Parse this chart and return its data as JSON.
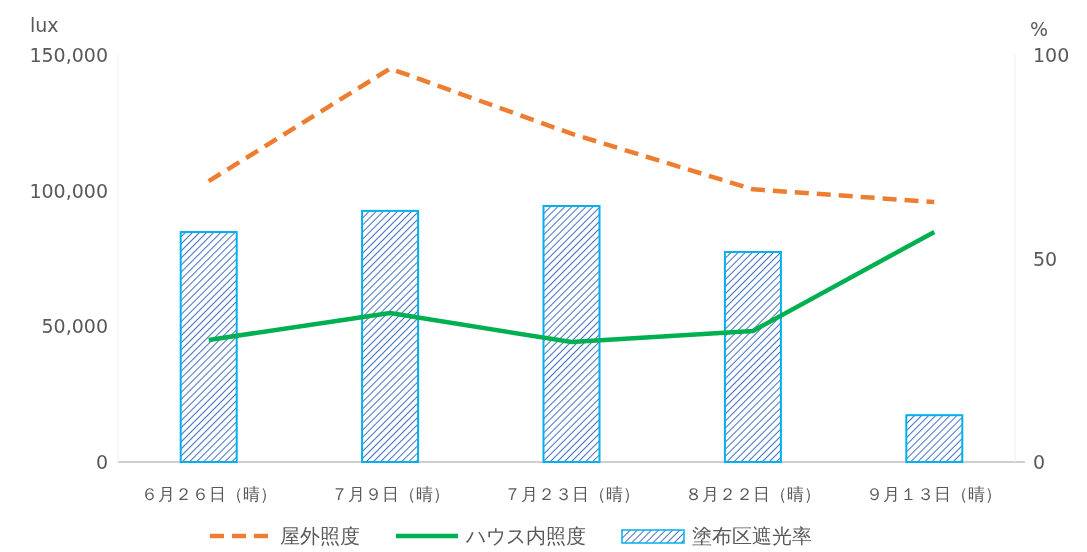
{
  "chart_data": {
    "type": "bar",
    "categories": [
      "６月２６日（晴）",
      "７月９日（晴）",
      "７月２３日（晴）",
      "８月２２日（晴）",
      "９月１３日（晴）"
    ],
    "ylabel": "lux",
    "y2label": "%",
    "ylim": [
      0,
      150000
    ],
    "yticks": [
      {
        "value": 0,
        "label": "0"
      },
      {
        "value": 50000,
        "label": "50,000"
      },
      {
        "value": 100000,
        "label": "100,000"
      },
      {
        "value": 150000,
        "label": "150,000"
      }
    ],
    "y2lim": [
      0,
      100
    ],
    "y2ticks": [
      0,
      50,
      100
    ],
    "legend": "bottom",
    "series": [
      {
        "name": "屋外照度",
        "type": "line",
        "line_style": "dashed",
        "color": "#ed7d31",
        "values": [
          103500,
          145000,
          121000,
          100500,
          95800
        ]
      },
      {
        "name": "ハウス内照度",
        "type": "line",
        "line_style": "solid",
        "color": "#00b050",
        "values": [
          45000,
          54900,
          44200,
          48300,
          84800
        ]
      },
      {
        "name": "塗布区遮光率",
        "type": "bar",
        "axis": "y2",
        "color": "#00b0f0",
        "values": [
          56.5,
          61.7,
          62.9,
          51.6,
          11.5
        ]
      }
    ]
  }
}
